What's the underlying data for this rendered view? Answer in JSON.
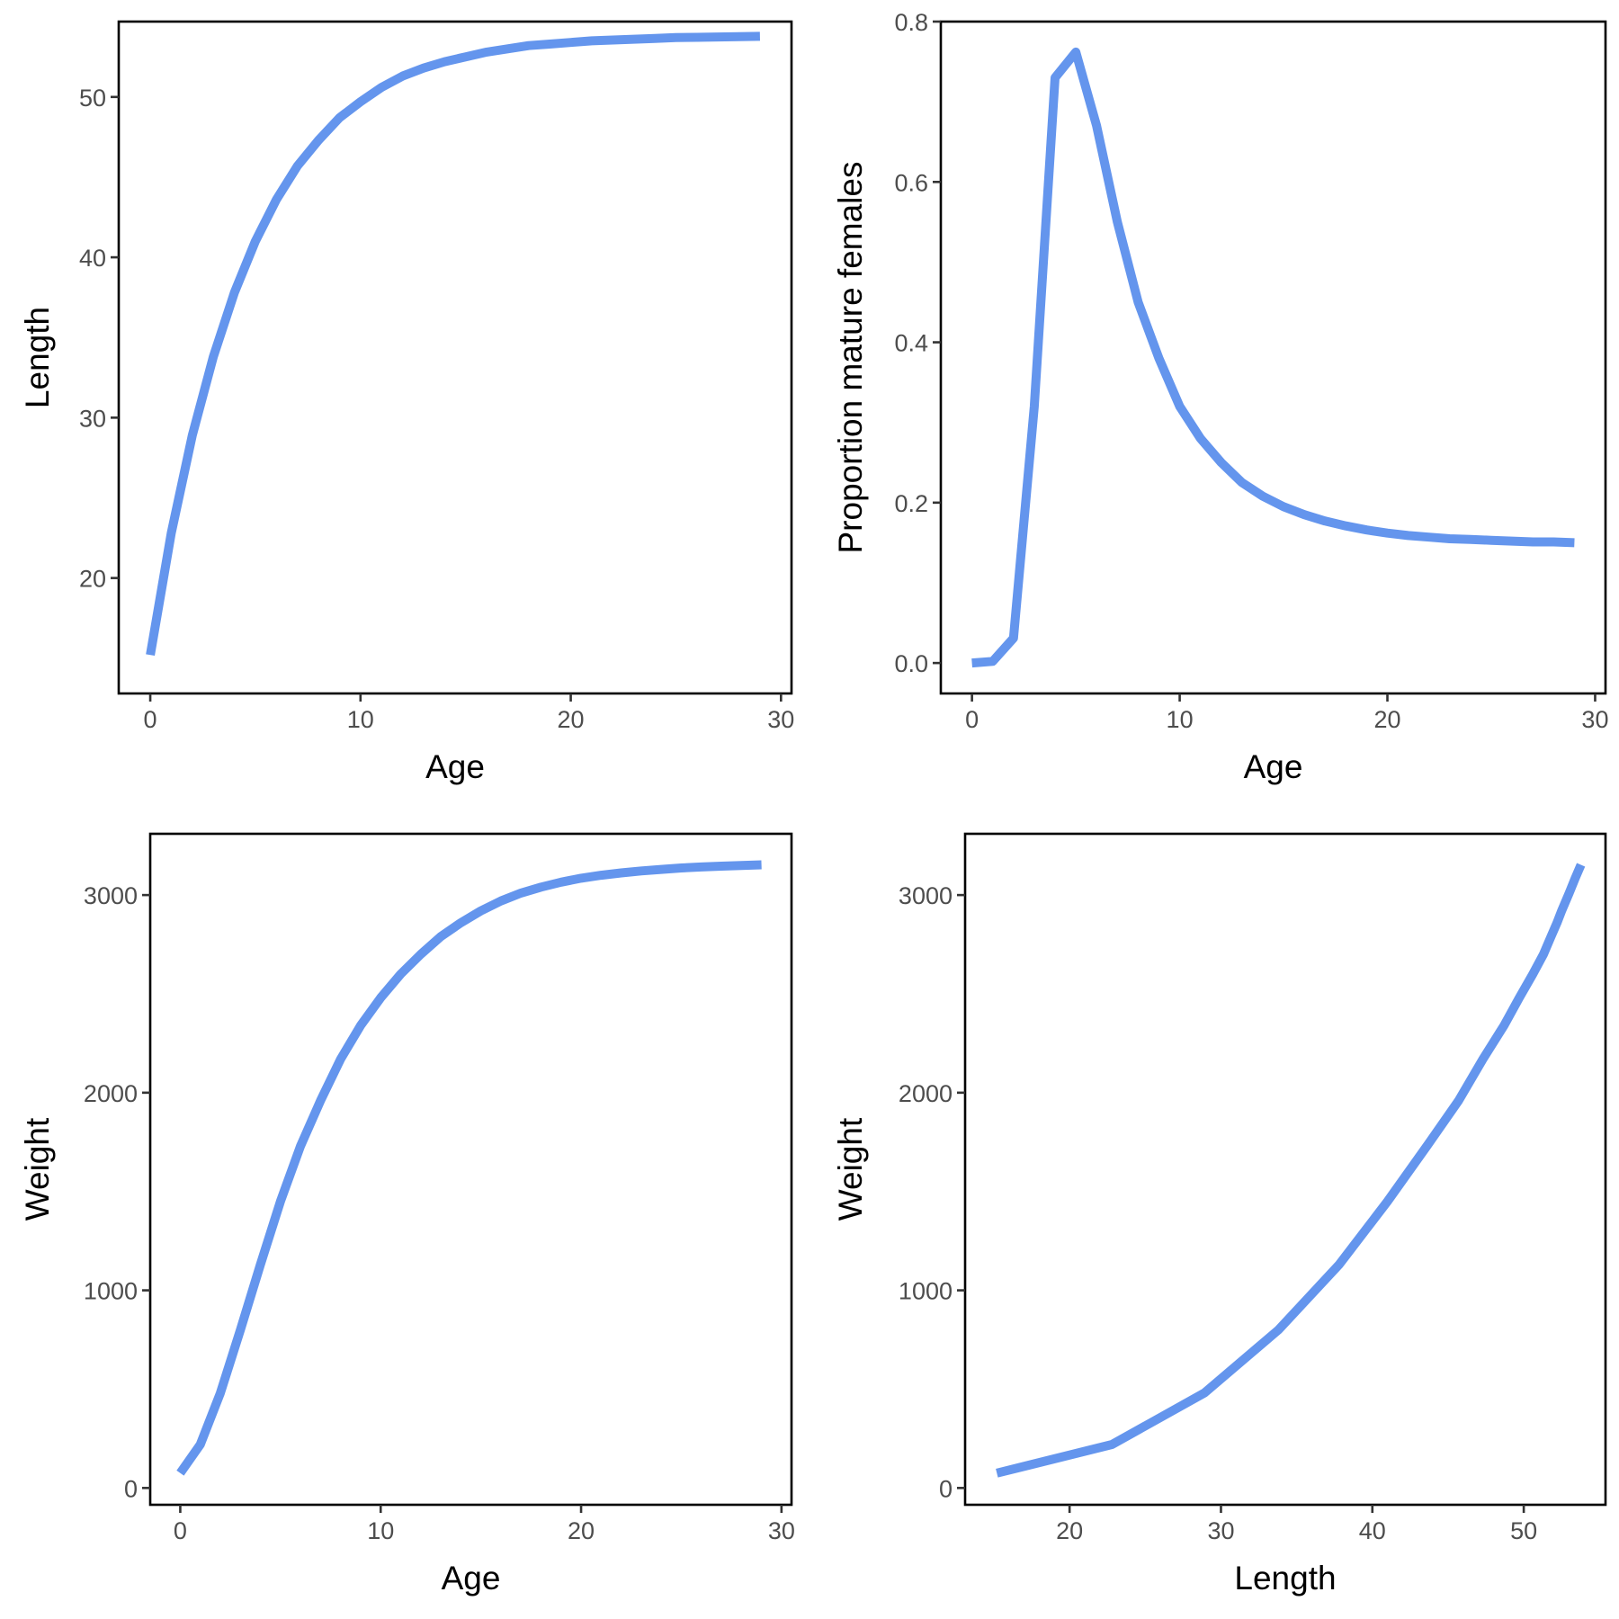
{
  "chart_data": [
    {
      "type": "line",
      "xlabel": "Age",
      "ylabel": "Length",
      "xlim": [
        -1.5,
        30.5
      ],
      "ylim": [
        12.8,
        54.7
      ],
      "xticks": [
        0,
        10,
        20,
        30
      ],
      "yticks": [
        20,
        30,
        40,
        50
      ],
      "grid": false,
      "series": [
        {
          "color": "#6495ED",
          "x": [
            0,
            1,
            2,
            3,
            4,
            5,
            6,
            7,
            8,
            9,
            10,
            11,
            12,
            13,
            14,
            15,
            16,
            17,
            18,
            19,
            20,
            21,
            22,
            23,
            24,
            25,
            26,
            27,
            28,
            29
          ],
          "values": [
            15.2,
            22.8,
            28.9,
            33.8,
            37.8,
            41.0,
            43.6,
            45.7,
            47.3,
            48.7,
            49.7,
            50.6,
            51.3,
            51.8,
            52.2,
            52.5,
            52.8,
            53.0,
            53.2,
            53.3,
            53.4,
            53.5,
            53.55,
            53.6,
            53.65,
            53.7,
            53.72,
            53.74,
            53.76,
            53.78
          ]
        }
      ]
    },
    {
      "type": "line",
      "xlabel": "Age",
      "ylabel": "Proportion mature females",
      "xlim": [
        -1.5,
        30.5
      ],
      "ylim": [
        -0.038,
        0.8
      ],
      "xticks": [
        0,
        10,
        20,
        30
      ],
      "yticks": [
        0.0,
        0.2,
        0.4,
        0.6,
        0.8
      ],
      "ytick_labels": [
        "0.0",
        "0.2",
        "0.4",
        "0.6",
        "0.8"
      ],
      "grid": false,
      "series": [
        {
          "color": "#6495ED",
          "x": [
            0,
            1,
            2,
            3,
            4,
            5,
            6,
            7,
            8,
            9,
            10,
            11,
            12,
            13,
            14,
            15,
            16,
            17,
            18,
            19,
            20,
            21,
            22,
            23,
            24,
            25,
            26,
            27,
            28,
            29
          ],
          "values": [
            0.0,
            0.002,
            0.031,
            0.32,
            0.73,
            0.762,
            0.67,
            0.55,
            0.45,
            0.38,
            0.32,
            0.28,
            0.25,
            0.225,
            0.208,
            0.195,
            0.185,
            0.177,
            0.171,
            0.166,
            0.162,
            0.159,
            0.157,
            0.155,
            0.154,
            0.153,
            0.152,
            0.151,
            0.151,
            0.15
          ]
        }
      ]
    },
    {
      "type": "line",
      "xlabel": "Age",
      "ylabel": "Weight",
      "xlim": [
        -1.5,
        30.5
      ],
      "ylim": [
        -85,
        3310
      ],
      "xticks": [
        0,
        10,
        20,
        30
      ],
      "yticks": [
        0,
        1000,
        2000,
        3000
      ],
      "grid": false,
      "series": [
        {
          "color": "#6495ED",
          "x": [
            0,
            1,
            2,
            3,
            4,
            5,
            6,
            7,
            8,
            9,
            10,
            11,
            12,
            13,
            14,
            15,
            16,
            17,
            18,
            19,
            20,
            21,
            22,
            23,
            24,
            25,
            26,
            27,
            28,
            29
          ],
          "values": [
            75,
            220,
            480,
            800,
            1130,
            1450,
            1730,
            1960,
            2170,
            2340,
            2480,
            2600,
            2700,
            2790,
            2860,
            2920,
            2970,
            3010,
            3040,
            3065,
            3085,
            3100,
            3112,
            3122,
            3130,
            3137,
            3142,
            3146,
            3150,
            3153
          ]
        }
      ]
    },
    {
      "type": "line",
      "xlabel": "Length",
      "ylabel": "Weight",
      "xlim": [
        13.1,
        55.4
      ],
      "ylim": [
        -85,
        3310
      ],
      "xticks": [
        20,
        30,
        40,
        50
      ],
      "yticks": [
        0,
        1000,
        2000,
        3000
      ],
      "grid": false,
      "series": [
        {
          "color": "#6495ED",
          "x": [
            15.2,
            22.8,
            28.9,
            33.8,
            37.8,
            41.0,
            43.6,
            45.7,
            47.3,
            48.7,
            49.7,
            50.6,
            51.3,
            51.8,
            52.2,
            52.5,
            53.0,
            53.4,
            53.78
          ],
          "values": [
            75,
            220,
            480,
            800,
            1130,
            1450,
            1730,
            1960,
            2170,
            2340,
            2480,
            2600,
            2700,
            2790,
            2860,
            2920,
            3010,
            3085,
            3153
          ]
        }
      ]
    }
  ]
}
